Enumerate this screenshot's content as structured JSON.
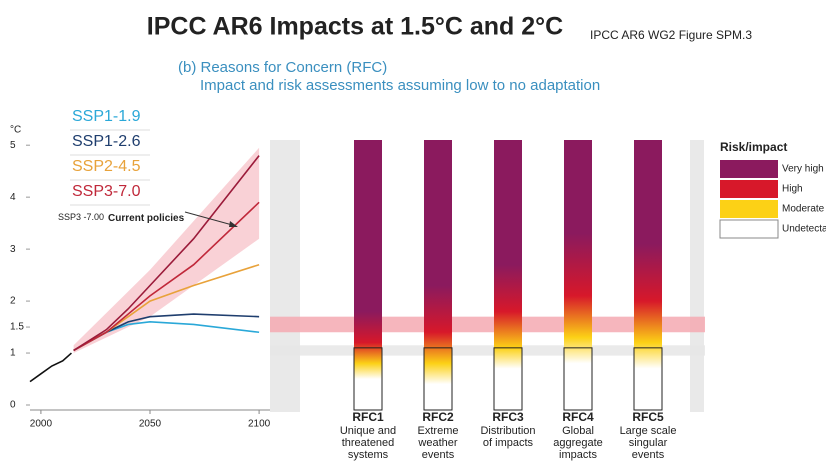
{
  "title": "IPCC AR6 Impacts at 1.5°C and 2°C",
  "source": "IPCC AR6 WG2 Figure SPM.3",
  "panel_label": "(b) Reasons for Concern (RFC)",
  "panel_subtitle": "Impact and risk assessments assuming low to no adaptation",
  "chart_data": {
    "type": "line",
    "y_unit": "°C",
    "xlim": [
      1995,
      2105
    ],
    "ylim": [
      0,
      5.1
    ],
    "xticks": [
      2000,
      2050,
      2100
    ],
    "yticks": [
      0,
      1,
      1.5,
      2,
      3,
      4,
      5
    ],
    "series": [
      {
        "color": "#111111",
        "x": [
          1995,
          2000,
          2005,
          2010,
          2014
        ],
        "values": [
          0.45,
          0.6,
          0.75,
          0.85,
          1.0
        ]
      },
      {
        "name": "SSP1-1.9",
        "color": "#2aa8d8",
        "x": [
          2015,
          2030,
          2040,
          2050,
          2070,
          2100
        ],
        "values": [
          1.05,
          1.4,
          1.55,
          1.6,
          1.55,
          1.4
        ]
      },
      {
        "name": "SSP1-2.6",
        "color": "#1f3e6e",
        "x": [
          2015,
          2030,
          2040,
          2050,
          2070,
          2100
        ],
        "values": [
          1.05,
          1.4,
          1.6,
          1.7,
          1.75,
          1.7
        ]
      },
      {
        "name": "SSP2-4.5",
        "color": "#e8a23a",
        "x": [
          2015,
          2030,
          2040,
          2050,
          2070,
          2100
        ],
        "values": [
          1.05,
          1.4,
          1.7,
          2.0,
          2.3,
          2.7
        ]
      },
      {
        "name": "SSP3-7.0",
        "color": "#c0283a",
        "x": [
          2015,
          2030,
          2040,
          2050,
          2070,
          2100
        ],
        "values": [
          1.05,
          1.4,
          1.75,
          2.1,
          2.7,
          3.9
        ]
      },
      {
        "color": "#9b1b3a",
        "x": [
          2015,
          2030,
          2040,
          2050,
          2070,
          2100
        ],
        "values": [
          1.05,
          1.45,
          1.85,
          2.3,
          3.2,
          4.8
        ]
      }
    ],
    "bands": [
      {
        "color": "#f7c6cc",
        "x": [
          2015,
          2050,
          2100
        ],
        "low": [
          1.0,
          1.7,
          3.2
        ],
        "high": [
          1.15,
          2.6,
          4.95
        ]
      }
    ],
    "annotation": {
      "prefix": "SSP3 -7.00",
      "text": "Current policies"
    },
    "reference_bands": [
      {
        "range": [
          1.4,
          1.7
        ],
        "color": "#f5a9b1"
      },
      {
        "range": [
          0.95,
          1.15
        ],
        "color": "#e6e6e6"
      }
    ],
    "risk_legend": {
      "title": "Risk/impact",
      "levels": [
        {
          "name": "Very high",
          "color": "#8b1a5e"
        },
        {
          "name": "High",
          "color": "#d7182a"
        },
        {
          "name": "Moderate",
          "color": "#fcd116"
        },
        {
          "name": "Undetectable",
          "color": "#ffffff"
        }
      ]
    },
    "rfc": [
      {
        "name": "RFC1",
        "lines": [
          "Unique and",
          "threatened",
          "systems"
        ],
        "stops": [
          {
            "value": 0.5,
            "level": 3
          },
          {
            "value": 0.8,
            "level": 2
          },
          {
            "value": 1.2,
            "level": 1
          },
          {
            "value": 1.8,
            "level": 0
          }
        ]
      },
      {
        "name": "RFC2",
        "lines": [
          "Extreme",
          "weather",
          "events"
        ],
        "stops": [
          {
            "value": 0.4,
            "level": 3
          },
          {
            "value": 0.8,
            "level": 2
          },
          {
            "value": 1.4,
            "level": 1
          },
          {
            "value": 2.3,
            "level": 0
          }
        ]
      },
      {
        "name": "RFC3",
        "lines": [
          "Distribution",
          "of impacts"
        ],
        "stops": [
          {
            "value": 0.7,
            "level": 3
          },
          {
            "value": 1.1,
            "level": 2
          },
          {
            "value": 1.8,
            "level": 1
          },
          {
            "value": 2.7,
            "level": 0
          }
        ]
      },
      {
        "name": "RFC4",
        "lines": [
          "Global",
          "aggregate",
          "impacts"
        ],
        "stops": [
          {
            "value": 0.8,
            "level": 3
          },
          {
            "value": 1.3,
            "level": 2
          },
          {
            "value": 2.1,
            "level": 1
          },
          {
            "value": 3.3,
            "level": 0
          }
        ]
      },
      {
        "name": "RFC5",
        "lines": [
          "Large scale",
          "singular",
          "events"
        ],
        "stops": [
          {
            "value": 0.7,
            "level": 3
          },
          {
            "value": 1.2,
            "level": 2
          },
          {
            "value": 2.0,
            "level": 1
          },
          {
            "value": 3.1,
            "level": 0
          }
        ]
      }
    ]
  }
}
